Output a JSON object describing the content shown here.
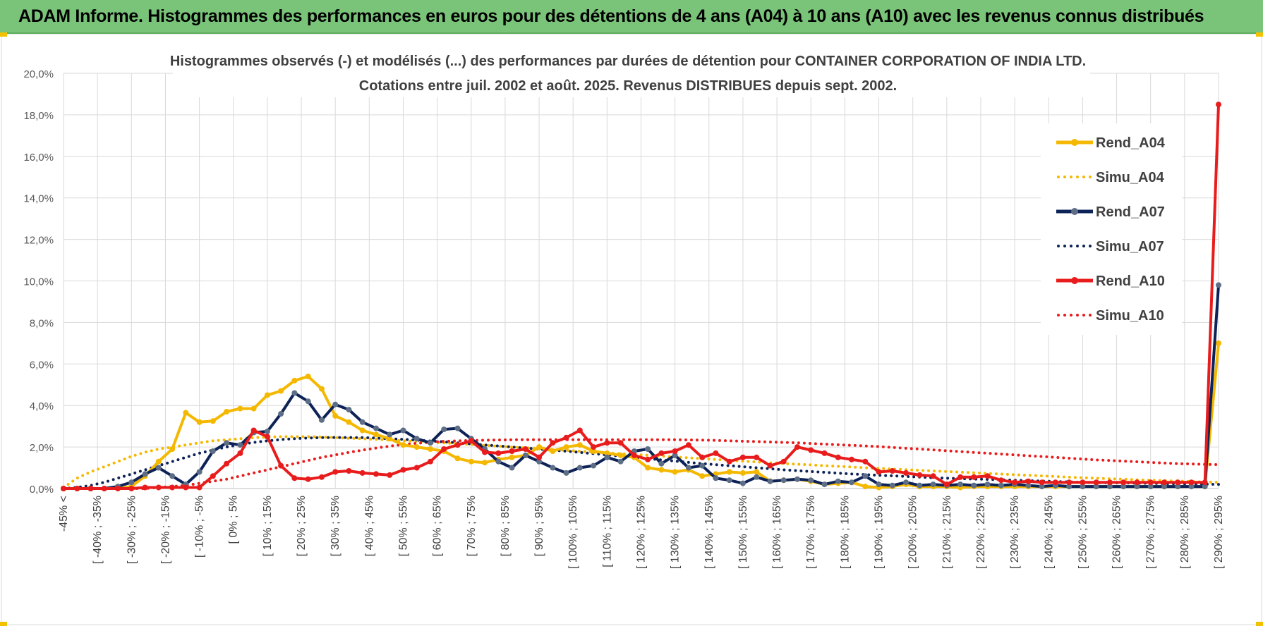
{
  "header": {
    "title": "ADAM Informe. Histogrammes des performances en euros pour des détentions de 4 ans (A04) à 10 ans (A10) avec les revenus connus distribués"
  },
  "chart_data": {
    "type": "line",
    "title": "Histogrammes observés (-) et modélisés (...) des performances par durées de détention pour CONTAINER CORPORATION OF INDIA LTD.",
    "subtitle": "Cotations entre juil. 2002 et août. 2025. Revenus DISTRIBUES depuis sept. 2002.",
    "ylim": [
      0,
      20
    ],
    "y_ticks": [
      "0,0%",
      "2,0%",
      "4,0%",
      "6,0%",
      "8,0%",
      "10,0%",
      "12,0%",
      "14,0%",
      "16,0%",
      "18,0%",
      "20,0%"
    ],
    "grid": true,
    "legend_position": "right",
    "x_tick_labels": [
      "-45% <",
      "[ -40% ; -35%",
      "[ -30% ; -25%",
      "[ -20% ; -15%",
      "[ -10% ; -5%",
      "[ 0% ; 5%",
      "[ 10% ; 15%",
      "[ 20% ; 25%",
      "[ 30% ; 35%",
      "[ 40% ; 45%",
      "[ 50% ; 55%",
      "[ 60% ; 65%",
      "[ 70% ; 75%",
      "[ 80% ; 85%",
      "[ 90% ; 95%",
      "[ 100% ; 105%",
      "[ 110% ; 115%",
      "[ 120% ; 125%",
      "[ 130% ; 135%",
      "[ 140% ; 145%",
      "[ 150% ; 155%",
      "[ 160% ; 165%",
      "[ 170% ; 175%",
      "[ 180% ; 185%",
      "[ 190% ; 195%",
      "[ 200% ; 205%",
      "[ 210% ; 215%",
      "[ 220% ; 225%",
      "[ 230% ; 235%",
      "[ 240% ; 245%",
      "[ 250% ; 255%",
      "[ 260% ; 265%",
      "[ 270% ; 275%",
      "[ 280% ; 285%",
      "[ 290% ; 295%"
    ],
    "series": [
      {
        "name": "Rend_A04",
        "color": "#f5b800",
        "style": "solid",
        "values": [
          0.0,
          0.0,
          0.0,
          0.0,
          0.0,
          0.1,
          0.6,
          1.3,
          1.9,
          3.65,
          3.2,
          3.25,
          3.7,
          3.85,
          3.85,
          4.5,
          4.7,
          5.2,
          5.4,
          4.8,
          3.5,
          3.2,
          2.8,
          2.6,
          2.4,
          2.1,
          2.0,
          1.9,
          1.8,
          1.45,
          1.3,
          1.25,
          1.4,
          1.5,
          1.6,
          2.0,
          1.8,
          2.0,
          2.1,
          1.8,
          1.7,
          1.6,
          1.5,
          1.0,
          0.9,
          0.8,
          0.9,
          0.6,
          0.7,
          0.8,
          0.75,
          0.8,
          0.35,
          0.4,
          0.45,
          0.35,
          0.2,
          0.25,
          0.3,
          0.1,
          0.05,
          0.1,
          0.2,
          0.1,
          0.1,
          0.1,
          0.05,
          0.1,
          0.1,
          0.1,
          0.1,
          0.1,
          0.1,
          0.1,
          0.1,
          0.1,
          0.1,
          0.1,
          0.1,
          0.1,
          0.1,
          0.1,
          0.1,
          0.1,
          0.1,
          7.0
        ]
      },
      {
        "name": "Simu_A04",
        "color": "#f5b800",
        "style": "dotted",
        "values": [
          0.05,
          0.5,
          0.8,
          1.05,
          1.3,
          1.55,
          1.75,
          1.9,
          2.0,
          2.1,
          2.2,
          2.3,
          2.35,
          2.4,
          2.45,
          2.48,
          2.5,
          2.5,
          2.5,
          2.48,
          2.45,
          2.42,
          2.4,
          2.37,
          2.34,
          2.3,
          2.27,
          2.23,
          2.2,
          2.16,
          2.12,
          2.08,
          2.04,
          2.0,
          1.96,
          1.92,
          1.88,
          1.84,
          1.8,
          1.76,
          1.72,
          1.68,
          1.64,
          1.6,
          1.56,
          1.52,
          1.48,
          1.44,
          1.4,
          1.36,
          1.32,
          1.28,
          1.24,
          1.2,
          1.17,
          1.14,
          1.1,
          1.07,
          1.04,
          1.0,
          0.97,
          0.94,
          0.91,
          0.88,
          0.85,
          0.82,
          0.79,
          0.76,
          0.73,
          0.7,
          0.67,
          0.64,
          0.61,
          0.58,
          0.55,
          0.52,
          0.5,
          0.47,
          0.45,
          0.42,
          0.4,
          0.38,
          0.36,
          0.34,
          0.32,
          0.3
        ]
      },
      {
        "name": "Rend_A07",
        "color": "#0d2257",
        "style": "solid",
        "values": [
          0.0,
          0.0,
          0.0,
          0.0,
          0.1,
          0.3,
          0.7,
          1.0,
          0.6,
          0.2,
          0.8,
          1.8,
          2.2,
          2.1,
          2.7,
          2.75,
          3.6,
          4.6,
          4.2,
          3.3,
          4.05,
          3.8,
          3.2,
          2.9,
          2.6,
          2.8,
          2.4,
          2.2,
          2.85,
          2.9,
          2.4,
          1.9,
          1.3,
          1.0,
          1.6,
          1.3,
          1.0,
          0.75,
          1.0,
          1.1,
          1.5,
          1.3,
          1.8,
          1.9,
          1.2,
          1.6,
          1.0,
          1.1,
          0.5,
          0.4,
          0.25,
          0.55,
          0.35,
          0.4,
          0.45,
          0.4,
          0.2,
          0.35,
          0.3,
          0.6,
          0.2,
          0.15,
          0.3,
          0.15,
          0.2,
          0.15,
          0.2,
          0.15,
          0.2,
          0.15,
          0.2,
          0.15,
          0.1,
          0.15,
          0.1,
          0.1,
          0.1,
          0.1,
          0.1,
          0.1,
          0.1,
          0.1,
          0.1,
          0.1,
          0.1,
          9.8
        ]
      },
      {
        "name": "Simu_A07",
        "color": "#0d2257",
        "style": "dotted",
        "values": [
          0.0,
          0.05,
          0.15,
          0.3,
          0.5,
          0.7,
          0.9,
          1.1,
          1.3,
          1.5,
          1.7,
          1.85,
          2.0,
          2.12,
          2.22,
          2.3,
          2.36,
          2.4,
          2.43,
          2.45,
          2.46,
          2.46,
          2.45,
          2.43,
          2.4,
          2.37,
          2.33,
          2.29,
          2.25,
          2.2,
          2.15,
          2.1,
          2.05,
          2.0,
          1.95,
          1.9,
          1.85,
          1.8,
          1.74,
          1.68,
          1.62,
          1.56,
          1.5,
          1.44,
          1.38,
          1.32,
          1.26,
          1.2,
          1.15,
          1.1,
          1.05,
          1.0,
          0.95,
          0.9,
          0.86,
          0.82,
          0.78,
          0.74,
          0.7,
          0.67,
          0.64,
          0.61,
          0.58,
          0.55,
          0.52,
          0.5,
          0.48,
          0.46,
          0.44,
          0.42,
          0.4,
          0.38,
          0.36,
          0.34,
          0.32,
          0.3,
          0.29,
          0.28,
          0.27,
          0.26,
          0.25,
          0.24,
          0.23,
          0.22,
          0.21,
          0.2
        ]
      },
      {
        "name": "Rend_A10",
        "color": "#e81c1c",
        "style": "solid",
        "values": [
          0.0,
          0.0,
          0.0,
          0.0,
          0.0,
          0.0,
          0.05,
          0.05,
          0.05,
          0.05,
          0.05,
          0.6,
          1.2,
          1.7,
          2.8,
          2.5,
          1.1,
          0.5,
          0.45,
          0.55,
          0.8,
          0.85,
          0.75,
          0.7,
          0.65,
          0.9,
          1.0,
          1.3,
          1.9,
          2.1,
          2.3,
          1.75,
          1.7,
          1.8,
          1.9,
          1.5,
          2.2,
          2.45,
          2.8,
          2.0,
          2.2,
          2.2,
          1.6,
          1.4,
          1.7,
          1.8,
          2.1,
          1.5,
          1.7,
          1.3,
          1.5,
          1.5,
          1.1,
          1.3,
          2.0,
          1.85,
          1.7,
          1.5,
          1.4,
          1.3,
          0.8,
          0.85,
          0.75,
          0.65,
          0.6,
          0.2,
          0.55,
          0.55,
          0.6,
          0.4,
          0.3,
          0.35,
          0.3,
          0.3,
          0.3,
          0.3,
          0.3,
          0.3,
          0.3,
          0.3,
          0.3,
          0.3,
          0.3,
          0.3,
          0.3,
          18.5
        ]
      },
      {
        "name": "Simu_A10",
        "color": "#e81c1c",
        "style": "dotted",
        "values": [
          0.0,
          0.0,
          0.0,
          0.0,
          0.0,
          0.0,
          0.0,
          0.05,
          0.1,
          0.15,
          0.25,
          0.35,
          0.45,
          0.6,
          0.75,
          0.9,
          1.05,
          1.2,
          1.35,
          1.5,
          1.62,
          1.74,
          1.85,
          1.95,
          2.04,
          2.12,
          2.18,
          2.23,
          2.27,
          2.3,
          2.32,
          2.33,
          2.34,
          2.35,
          2.35,
          2.35,
          2.35,
          2.35,
          2.35,
          2.35,
          2.35,
          2.35,
          2.35,
          2.35,
          2.35,
          2.35,
          2.34,
          2.33,
          2.32,
          2.3,
          2.28,
          2.26,
          2.24,
          2.22,
          2.2,
          2.17,
          2.14,
          2.11,
          2.08,
          2.05,
          2.02,
          1.98,
          1.94,
          1.9,
          1.86,
          1.82,
          1.78,
          1.74,
          1.7,
          1.66,
          1.62,
          1.58,
          1.54,
          1.5,
          1.46,
          1.42,
          1.38,
          1.35,
          1.32,
          1.29,
          1.26,
          1.23,
          1.2,
          1.18,
          1.16,
          1.15
        ]
      }
    ]
  }
}
